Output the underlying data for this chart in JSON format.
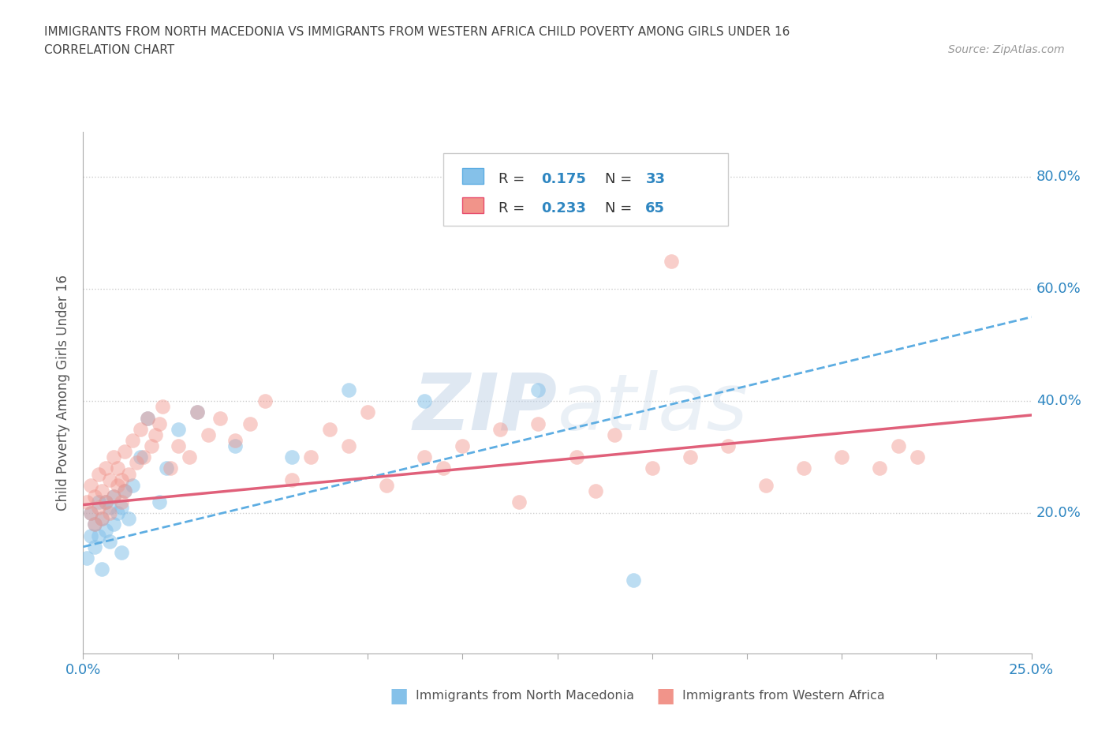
{
  "title_line1": "IMMIGRANTS FROM NORTH MACEDONIA VS IMMIGRANTS FROM WESTERN AFRICA CHILD POVERTY AMONG GIRLS UNDER 16",
  "title_line2": "CORRELATION CHART",
  "source_text": "Source: ZipAtlas.com",
  "ylabel": "Child Poverty Among Girls Under 16",
  "xlim": [
    0.0,
    0.25
  ],
  "ylim": [
    -0.05,
    0.88
  ],
  "ytick_values": [
    0.2,
    0.4,
    0.6,
    0.8
  ],
  "ytick_labels": [
    "20.0%",
    "40.0%",
    "60.0%",
    "80.0%"
  ],
  "color_blue": "#85C1E9",
  "color_blue_edge": "#5DADE2",
  "color_pink": "#F1948A",
  "color_pink_edge": "#E74C6C",
  "color_blue_line": "#5DADE2",
  "color_pink_line": "#E0607A",
  "color_text_blue": "#2E86C1",
  "R_blue": 0.175,
  "N_blue": 33,
  "R_pink": 0.233,
  "N_pink": 65,
  "watermark": "ZIPatlas",
  "blue_line_y0": 0.14,
  "blue_line_y1": 0.55,
  "pink_line_y0": 0.215,
  "pink_line_y1": 0.375,
  "blue_scatter_x": [
    0.001,
    0.002,
    0.002,
    0.003,
    0.003,
    0.004,
    0.004,
    0.005,
    0.005,
    0.006,
    0.006,
    0.007,
    0.007,
    0.008,
    0.008,
    0.009,
    0.01,
    0.01,
    0.011,
    0.012,
    0.013,
    0.015,
    0.017,
    0.02,
    0.022,
    0.025,
    0.03,
    0.04,
    0.055,
    0.07,
    0.09,
    0.12,
    0.145
  ],
  "blue_scatter_y": [
    0.12,
    0.16,
    0.2,
    0.14,
    0.18,
    0.22,
    0.16,
    0.1,
    0.19,
    0.17,
    0.22,
    0.21,
    0.15,
    0.23,
    0.18,
    0.2,
    0.13,
    0.21,
    0.24,
    0.19,
    0.25,
    0.3,
    0.37,
    0.22,
    0.28,
    0.35,
    0.38,
    0.32,
    0.3,
    0.42,
    0.4,
    0.42,
    0.08
  ],
  "pink_scatter_x": [
    0.001,
    0.002,
    0.002,
    0.003,
    0.003,
    0.004,
    0.004,
    0.005,
    0.005,
    0.006,
    0.006,
    0.007,
    0.007,
    0.008,
    0.008,
    0.009,
    0.009,
    0.01,
    0.01,
    0.011,
    0.011,
    0.012,
    0.013,
    0.014,
    0.015,
    0.016,
    0.017,
    0.018,
    0.019,
    0.02,
    0.021,
    0.023,
    0.025,
    0.028,
    0.03,
    0.033,
    0.036,
    0.04,
    0.044,
    0.048,
    0.055,
    0.06,
    0.065,
    0.07,
    0.075,
    0.08,
    0.09,
    0.095,
    0.1,
    0.11,
    0.115,
    0.12,
    0.13,
    0.135,
    0.14,
    0.15,
    0.16,
    0.17,
    0.18,
    0.19,
    0.2,
    0.21,
    0.215,
    0.22,
    0.155
  ],
  "pink_scatter_y": [
    0.22,
    0.2,
    0.25,
    0.18,
    0.23,
    0.27,
    0.21,
    0.19,
    0.24,
    0.22,
    0.28,
    0.26,
    0.2,
    0.3,
    0.23,
    0.25,
    0.28,
    0.22,
    0.26,
    0.31,
    0.24,
    0.27,
    0.33,
    0.29,
    0.35,
    0.3,
    0.37,
    0.32,
    0.34,
    0.36,
    0.39,
    0.28,
    0.32,
    0.3,
    0.38,
    0.34,
    0.37,
    0.33,
    0.36,
    0.4,
    0.26,
    0.3,
    0.35,
    0.32,
    0.38,
    0.25,
    0.3,
    0.28,
    0.32,
    0.35,
    0.22,
    0.36,
    0.3,
    0.24,
    0.34,
    0.28,
    0.3,
    0.32,
    0.25,
    0.28,
    0.3,
    0.28,
    0.32,
    0.3,
    0.65
  ]
}
